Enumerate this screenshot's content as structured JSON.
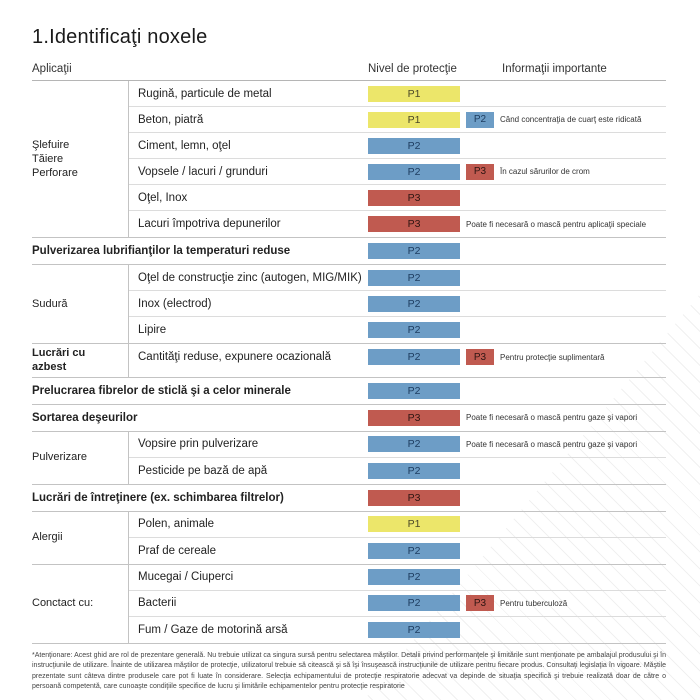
{
  "title": "1.Identificaţi noxele",
  "header": {
    "applications": "Aplicaţii",
    "protection": "Nivel de protecţie",
    "info": "Informaţii importante"
  },
  "colors": {
    "p1_bg": "#ece66a",
    "p1_text": "#4a4728",
    "p2_bg": "#6d9dc6",
    "p2_text": "#1d3c5f",
    "p3_bg": "#c05a50",
    "p3_text": "#2e1512"
  },
  "sections": [
    {
      "label": "Şlefuire\nTăiere\nPerforare",
      "rows": [
        {
          "text": "Rugină, particule de metal",
          "level": "P1"
        },
        {
          "text": "Beton, piatră",
          "level": "P1",
          "badge": "P2",
          "info": "Când concentraţia de cuarţ este ridicată"
        },
        {
          "text": "Ciment, lemn, oţel",
          "level": "P2"
        },
        {
          "text": "Vopsele / lacuri / grunduri",
          "level": "P2",
          "badge": "P3",
          "info": "În cazul sărurilor de crom"
        },
        {
          "text": "Oţel, Inox",
          "level": "P3"
        },
        {
          "text": "Lacuri împotriva depunerilor",
          "level": "P3",
          "info": "Poate fi necesară o mască pentru aplicaţii speciale"
        }
      ]
    },
    {
      "label": "",
      "rows": [
        {
          "text": "Pulverizarea lubrifianţilor la temperaturi reduse",
          "level": "P2"
        }
      ]
    },
    {
      "label": "Sudură",
      "rows": [
        {
          "text": "Oţel de construcţie zinc (autogen, MIG/MIK)",
          "level": "P2"
        },
        {
          "text": "Inox (electrod)",
          "level": "P2"
        },
        {
          "text": "Lipire",
          "level": "P2"
        }
      ]
    },
    {
      "label": "Lucrări cu azbest",
      "rows": [
        {
          "text": "Cantităţi reduse, expunere ocazională",
          "level": "P2",
          "badge": "P3",
          "info": "Pentru protecţie suplimentară"
        }
      ]
    },
    {
      "label": "",
      "rows": [
        {
          "text": "Prelucrarea fibrelor de sticlă şi a celor minerale",
          "level": "P2"
        }
      ]
    },
    {
      "label": "",
      "rows": [
        {
          "text": "Sortarea deşeurilor",
          "level": "P3",
          "info": "Poate fi necesară o mască pentru gaze şi vapori"
        }
      ]
    },
    {
      "label": "Pulverizare",
      "rows": [
        {
          "text": "Vopsire prin pulverizare",
          "level": "P2",
          "info": "Poate fi necesară o mască pentru gaze şi vapori"
        },
        {
          "text": "Pesticide pe bază de apă",
          "level": "P2"
        }
      ]
    },
    {
      "label": "",
      "rows": [
        {
          "text": "Lucrări de întreţinere (ex. schimbarea filtrelor)",
          "level": "P3"
        }
      ]
    },
    {
      "label": "Alergii",
      "rows": [
        {
          "text": "Polen, animale",
          "level": "P1"
        },
        {
          "text": "Praf de cereale",
          "level": "P2"
        }
      ]
    },
    {
      "label": "Conctact cu:",
      "rows": [
        {
          "text": "Mucegai / Ciuperci",
          "level": "P2"
        },
        {
          "text": "Bacterii",
          "level": "P2",
          "badge": "P3",
          "info": "Pentru tuberculoză"
        },
        {
          "text": "Fum / Gaze de motorină arsă",
          "level": "P2"
        }
      ]
    }
  ],
  "footnote": "*Atenţionare: Acest ghid are rol de prezentare generală. Nu trebuie utilizat ca singura sursă pentru selectarea măştilor. Detalii privind performanţele şi limitările sunt menţionate pe ambalajul produsului şi în instrucţiunile de utilizare. Înainte de utilizarea măştilor de protecţie, utilizatorul trebuie să citească şi să îşi însuşească instrucţiunile de utilizare pentru fiecare produs. Consultaţi legislaţia în vigoare. Măştile prezentate sunt câteva dintre produsele care pot fi luate în considerare. Selecţia echipamentului de protecţie respiratorie adecvat va depinde de situaţia specifică şi trebuie realizată doar de către o persoană competentă, care cunoaşte condiţiile specifice de lucru şi limitările echipamentelor pentru protecţie respiratorie"
}
